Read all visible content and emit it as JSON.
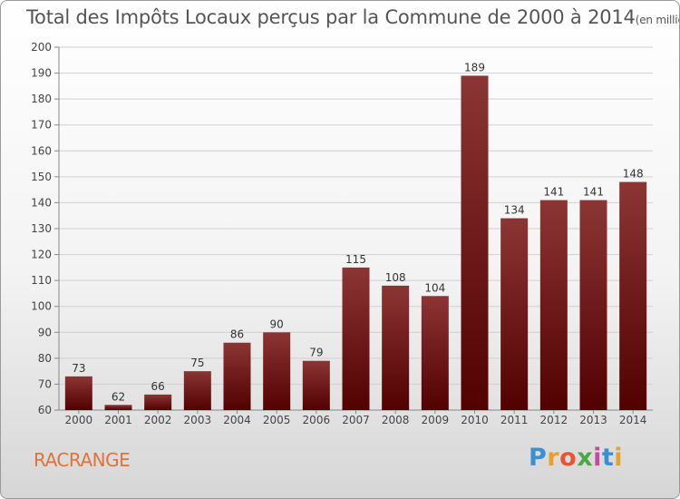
{
  "header": {
    "title": "Total des Impôts Locaux perçus par la Commune de 2000 à 2014",
    "unit": "(en milliers d'€)"
  },
  "footer": {
    "commune": "RACRANGE",
    "brand": "Proxiti",
    "brand_colors": [
      "#3b8fd4",
      "#e8a12c",
      "#e8552f",
      "#4aa846",
      "#c847a0",
      "#3b8fd4",
      "#e8a12c"
    ]
  },
  "colors": {
    "bar_top": "#8c3535",
    "bar_bottom": "#520000",
    "title": "#555555",
    "commune": "#e0733a"
  },
  "chart_data": {
    "type": "bar",
    "title": "Total des Impôts Locaux perçus par la Commune de 2000 à 2014",
    "xlabel": "",
    "ylabel": "",
    "ylim": [
      60,
      200
    ],
    "ytick_step": 10,
    "grid": "horizontal",
    "categories": [
      "2000",
      "2001",
      "2002",
      "2003",
      "2004",
      "2005",
      "2006",
      "2007",
      "2008",
      "2009",
      "2010",
      "2011",
      "2012",
      "2013",
      "2014"
    ],
    "values": [
      73,
      62,
      66,
      75,
      86,
      90,
      79,
      115,
      108,
      104,
      189,
      134,
      141,
      141,
      148
    ]
  }
}
